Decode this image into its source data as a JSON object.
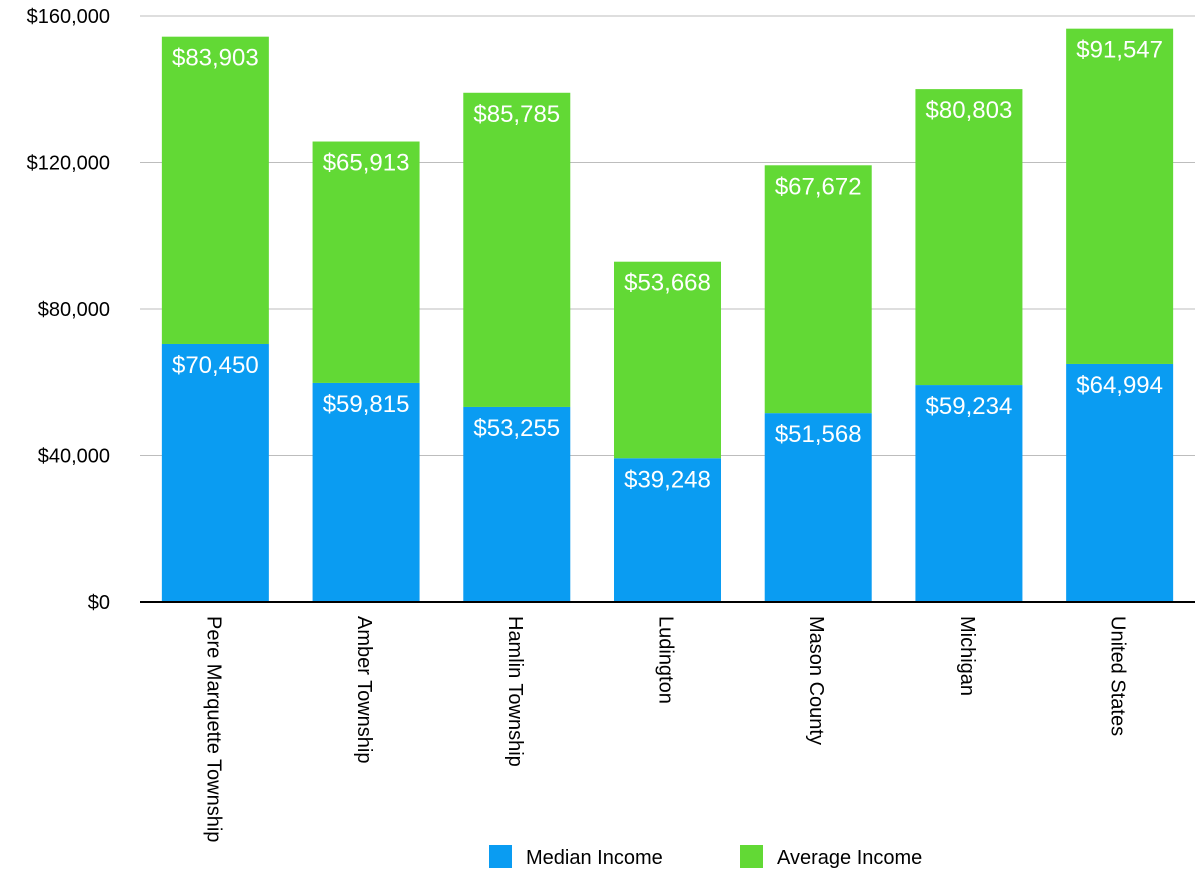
{
  "chart_data": {
    "type": "bar",
    "stacked": true,
    "title": "",
    "xlabel": "",
    "ylabel": "",
    "ylim": [
      0,
      160000
    ],
    "yticks": [
      0,
      40000,
      80000,
      120000,
      160000
    ],
    "ytick_labels": [
      "$0",
      "$40,000",
      "$80,000",
      "$120,000",
      "$160,000"
    ],
    "grid": true,
    "legend_position": "bottom",
    "categories": [
      "Pere Marquette Township",
      "Amber Township",
      "Hamlin Township",
      "Ludington",
      "Mason County",
      "Michigan",
      "United States"
    ],
    "series": [
      {
        "name": "Median Income",
        "color": "#0a9cf2",
        "values": [
          70450,
          59815,
          53255,
          39248,
          51568,
          59234,
          64994
        ],
        "labels": [
          "$70,450",
          "$59,815",
          "$53,255",
          "$39,248",
          "$51,568",
          "$59,234",
          "$64,994"
        ]
      },
      {
        "name": "Average Income",
        "color": "#62d935",
        "values": [
          83903,
          65913,
          85785,
          53668,
          67672,
          80803,
          91547
        ],
        "labels": [
          "$83,903",
          "$65,913",
          "$85,785",
          "$53,668",
          "$67,672",
          "$80,803",
          "$91,547"
        ]
      }
    ]
  }
}
